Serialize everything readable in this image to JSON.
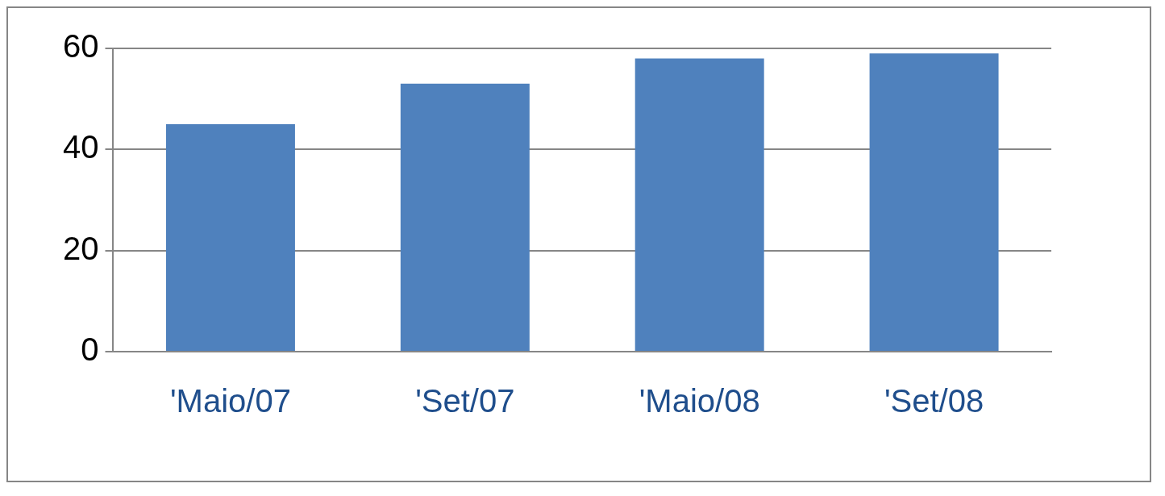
{
  "chart_data": {
    "type": "bar",
    "categories": [
      "'Maio/07",
      "'Set/07",
      "'Maio/08",
      "'Set/08"
    ],
    "values": [
      45,
      53,
      58,
      59
    ],
    "color": "#4f81bd",
    "ylim": [
      0,
      60
    ],
    "yticks": [
      0,
      20,
      40,
      60
    ],
    "grid": "y",
    "legend": false
  }
}
